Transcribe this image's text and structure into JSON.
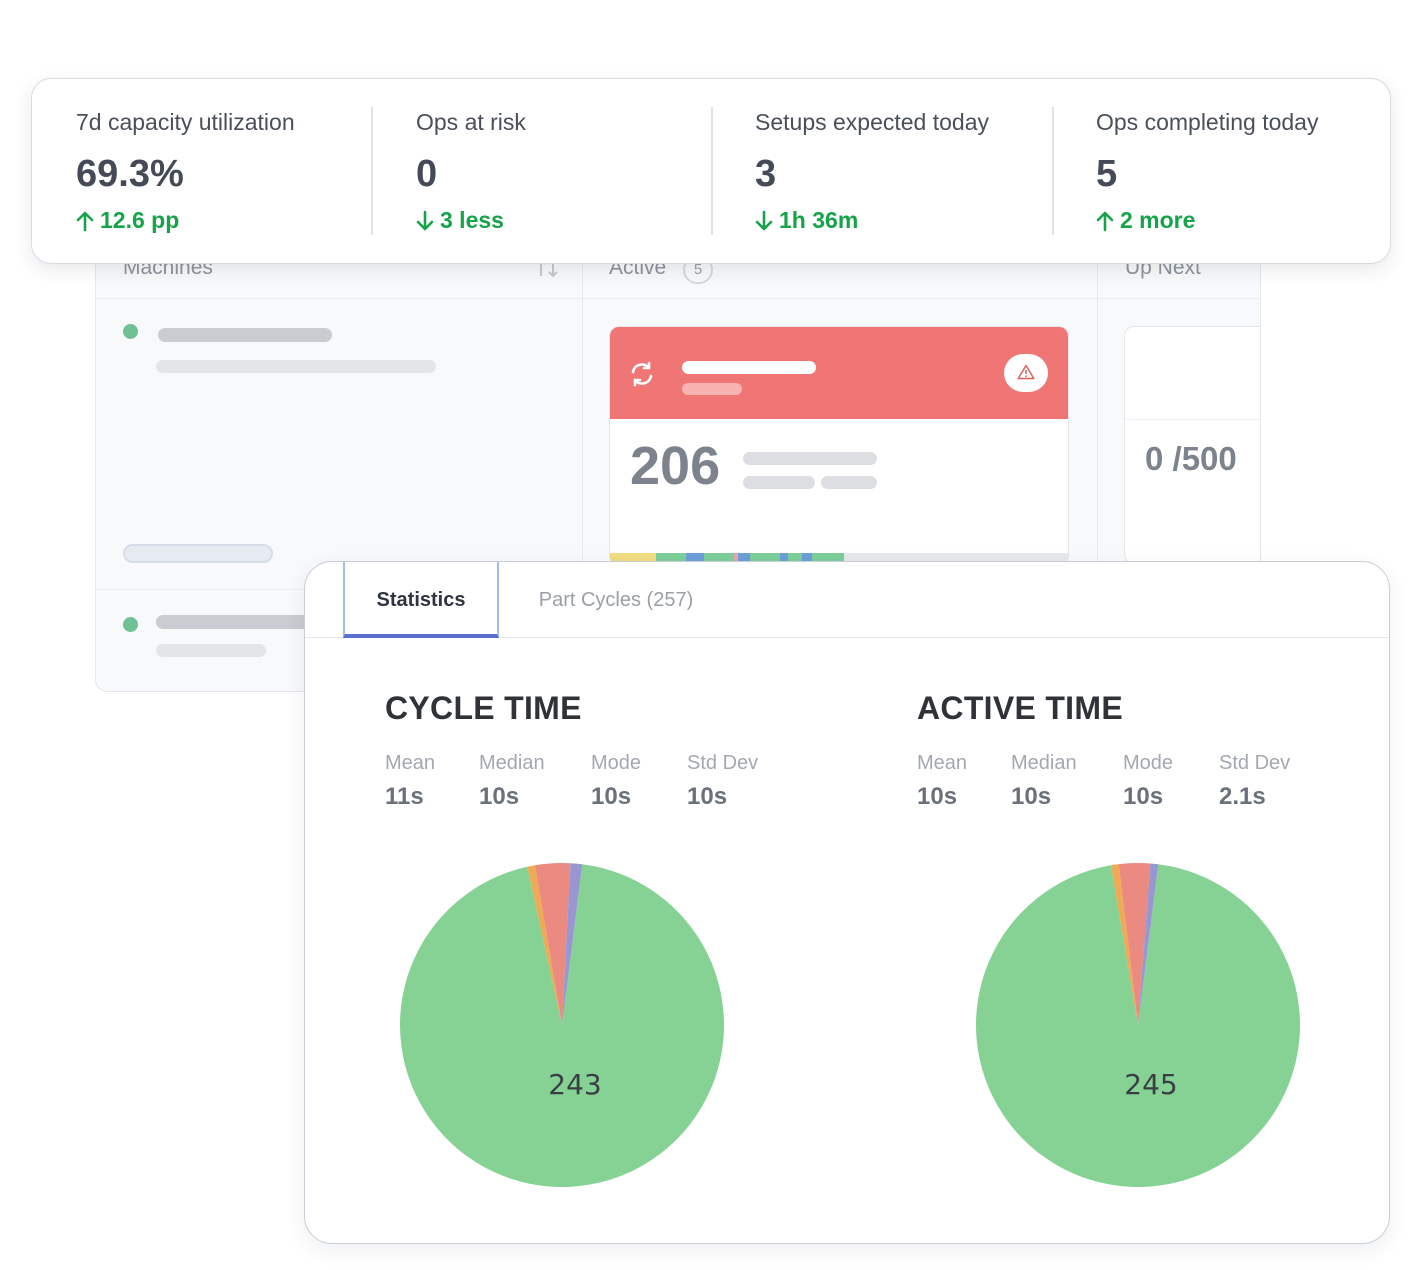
{
  "board": {
    "columns": {
      "machines": "Machines",
      "active": "Active",
      "active_count": "5",
      "up_next": "Up Next"
    },
    "active_card": {
      "count": "206",
      "status_color": "#ef7674"
    },
    "up_next_card": {
      "ratio": "0 /500"
    }
  },
  "kpis": [
    {
      "label": "7d capacity utilization",
      "value": "69.3%",
      "delta": "12.6 pp",
      "direction": "up"
    },
    {
      "label": "Ops at risk",
      "value": "0",
      "delta": "3 less",
      "direction": "down"
    },
    {
      "label": "Setups expected today",
      "value": "3",
      "delta": "1h 36m",
      "direction": "down"
    },
    {
      "label": "Ops completing today",
      "value": "5",
      "delta": "2 more",
      "direction": "up"
    }
  ],
  "colors": {
    "positive": "#16a34a",
    "pie_green": "#86d194",
    "pie_orange": "#eeaa55",
    "pie_red": "#ea8a80",
    "pie_purple": "#9996d2"
  },
  "stats_panel": {
    "tabs": {
      "statistics": "Statistics",
      "part_cycles": "Part Cycles (257)"
    },
    "cycle_time": {
      "title": "CYCLE TIME",
      "metrics": [
        {
          "label": "Mean",
          "value": "11s"
        },
        {
          "label": "Median",
          "value": "10s"
        },
        {
          "label": "Mode",
          "value": "10s"
        },
        {
          "label": "Std Dev",
          "value": "10s"
        }
      ]
    },
    "active_time": {
      "title": "ACTIVE TIME",
      "metrics": [
        {
          "label": "Mean",
          "value": "10s"
        },
        {
          "label": "Median",
          "value": "10s"
        },
        {
          "label": "Mode",
          "value": "10s"
        },
        {
          "label": "Std Dev",
          "value": "2.1s"
        }
      ]
    }
  },
  "chart_data": [
    {
      "type": "pie",
      "name": "cycle_time",
      "slices": [
        {
          "value": 243,
          "color": "#86d194",
          "label": "243"
        },
        {
          "value": 2,
          "color": "#eeaa55"
        },
        {
          "value": 9,
          "color": "#ea8a80"
        },
        {
          "value": 3,
          "color": "#9996d2"
        }
      ]
    },
    {
      "type": "pie",
      "name": "active_time",
      "slices": [
        {
          "value": 245,
          "color": "#86d194",
          "label": "245"
        },
        {
          "value": 2,
          "color": "#eeaa55"
        },
        {
          "value": 8,
          "color": "#ea8a80"
        },
        {
          "value": 2,
          "color": "#9996d2"
        }
      ]
    }
  ]
}
